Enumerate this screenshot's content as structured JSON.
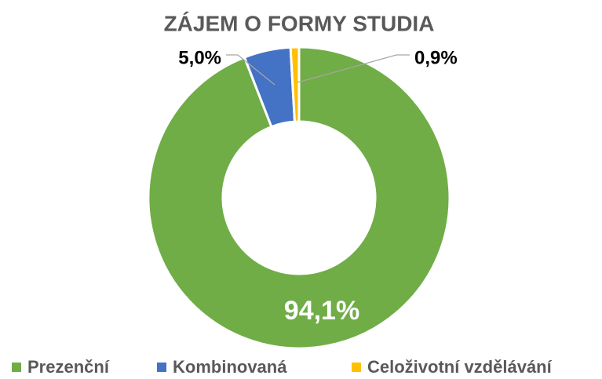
{
  "chart_data": {
    "type": "donut",
    "title": "ZÁJEM O FORMY STUDIA",
    "categories": [
      "Prezenční",
      "Kombinovaná",
      "Celoživotní vzdělávání"
    ],
    "values": [
      94.1,
      5.0,
      0.9
    ],
    "value_labels": [
      "94,1%",
      "5,0%",
      "0,9%"
    ],
    "colors": [
      "#70ad47",
      "#4472c4",
      "#ffc000"
    ],
    "legend": "bottom"
  }
}
